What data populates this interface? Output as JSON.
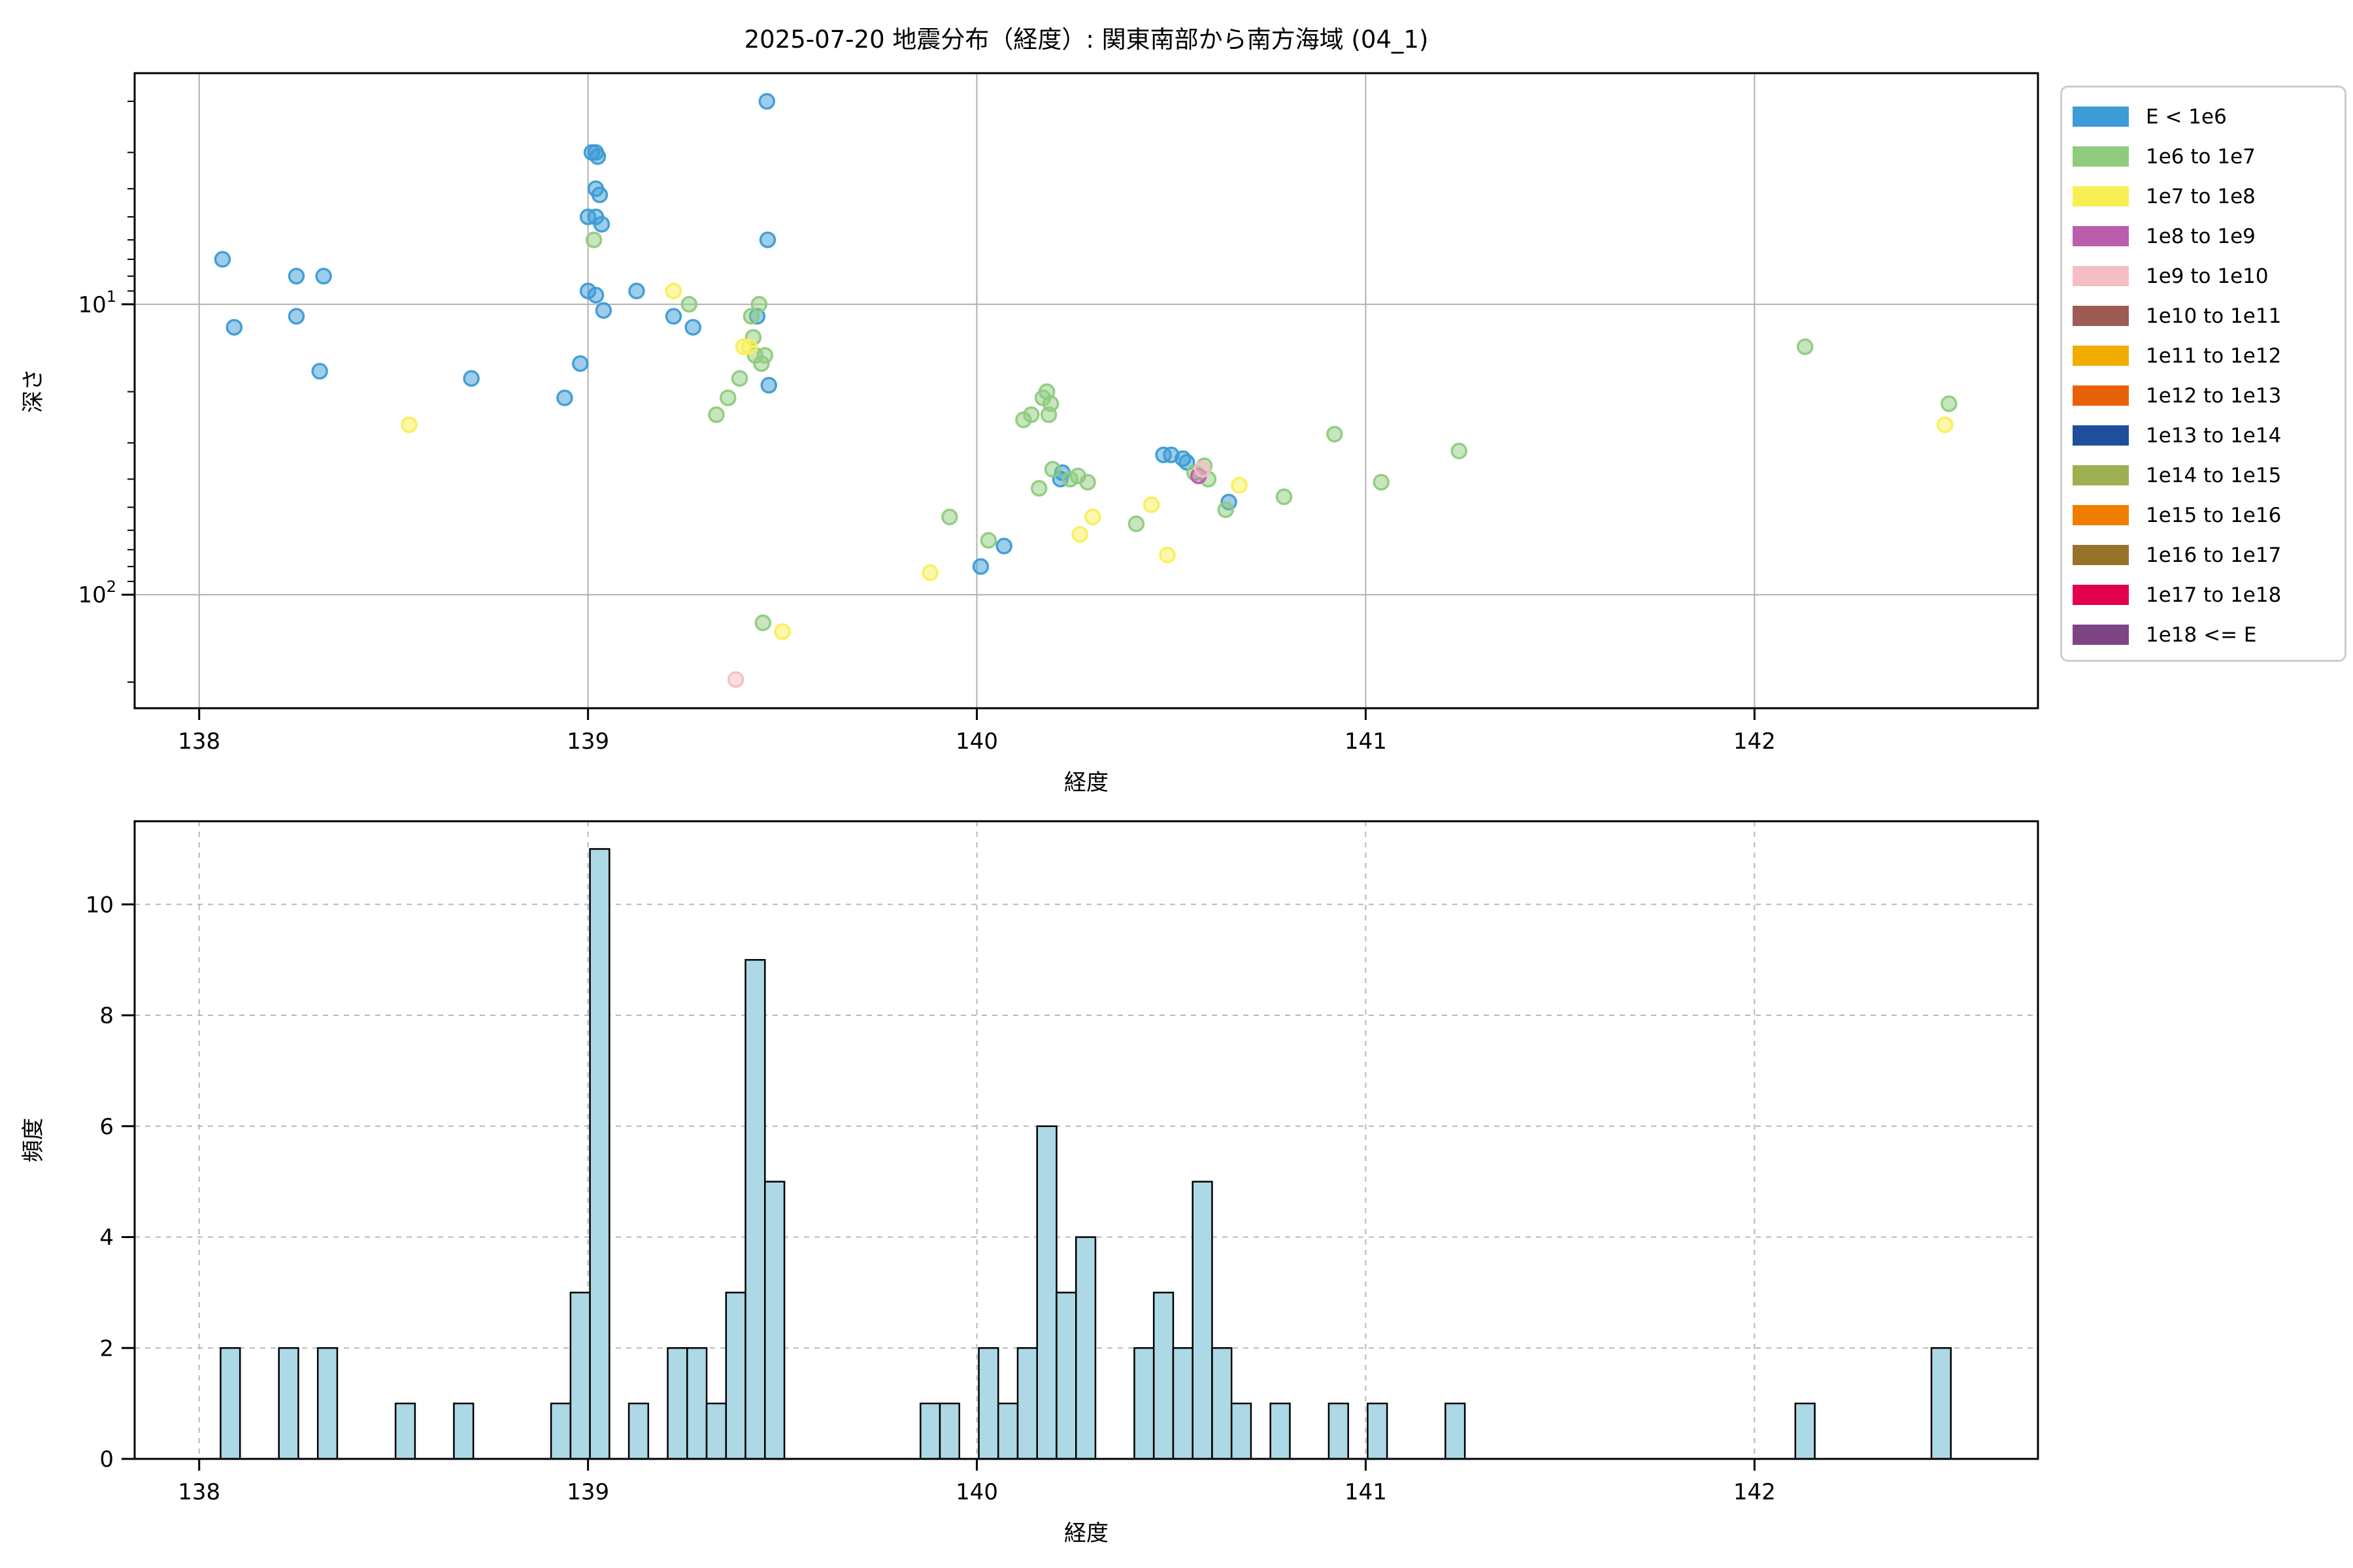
{
  "title": "2025-07-20 地震分布（経度）: 関東南部から南方海域 (04_1)",
  "legend": {
    "items": [
      {
        "label": "E < 1e6",
        "color": "#3d9bd5"
      },
      {
        "label": "1e6 to 1e7",
        "color": "#8fcb7d"
      },
      {
        "label": "1e7 to 1e8",
        "color": "#f9ef55"
      },
      {
        "label": "1e8 to 1e9",
        "color": "#bb5cad"
      },
      {
        "label": "1e9 to 1e10",
        "color": "#f5bec4"
      },
      {
        "label": "1e10 to 1e11",
        "color": "#9d5b53"
      },
      {
        "label": "1e11 to 1e12",
        "color": "#f0ad00"
      },
      {
        "label": "1e12 to 1e13",
        "color": "#e96106"
      },
      {
        "label": "1e13 to 1e14",
        "color": "#1f4e9c"
      },
      {
        "label": "1e14 to 1e15",
        "color": "#9caf51"
      },
      {
        "label": "1e15 to 1e16",
        "color": "#f07d00"
      },
      {
        "label": "1e16 to 1e17",
        "color": "#97732a"
      },
      {
        "label": "1e17 to 1e18",
        "color": "#e2004f"
      },
      {
        "label": "1e18 <= E",
        "color": "#7d4583"
      }
    ]
  },
  "chart_data": [
    {
      "type": "scatter",
      "title": "2025-07-20 地震分布（経度）: 関東南部から南方海域 (04_1)",
      "xlabel": "経度",
      "ylabel": "深さ",
      "xlim": [
        137.834,
        142.729
      ],
      "xticks": [
        138,
        139,
        140,
        141,
        142
      ],
      "y_scale": "log-inverted",
      "depth_lim": [
        1.6,
        246
      ],
      "ytick_labels": [
        {
          "base": "10",
          "exp": "1",
          "value": 10
        },
        {
          "base": "10",
          "exp": "2",
          "value": 100
        }
      ],
      "grid": true,
      "legend_position": "outside-upper-right",
      "series_key": [
        "longitude",
        "depth_km",
        "energy_class_index"
      ],
      "points": [
        [
          138.06,
          7,
          0
        ],
        [
          138.09,
          12,
          0
        ],
        [
          138.25,
          8,
          0
        ],
        [
          138.25,
          11,
          0
        ],
        [
          138.31,
          17,
          0
        ],
        [
          138.32,
          8,
          0
        ],
        [
          138.7,
          18,
          0
        ],
        [
          138.94,
          21,
          0
        ],
        [
          138.98,
          16,
          0
        ],
        [
          139.0,
          5,
          0
        ],
        [
          139.0,
          9,
          0
        ],
        [
          139.01,
          3,
          0
        ],
        [
          139.02,
          3,
          0
        ],
        [
          139.025,
          3.1,
          0
        ],
        [
          139.02,
          4,
          0
        ],
        [
          139.03,
          4.2,
          0
        ],
        [
          139.02,
          5,
          0
        ],
        [
          139.035,
          5.3,
          0
        ],
        [
          139.02,
          9.3,
          0
        ],
        [
          139.04,
          10.5,
          0
        ],
        [
          139.125,
          9,
          0
        ],
        [
          139.22,
          11,
          0
        ],
        [
          139.27,
          12,
          0
        ],
        [
          139.435,
          11,
          0
        ],
        [
          139.46,
          2,
          0
        ],
        [
          139.462,
          6,
          0
        ],
        [
          139.465,
          19,
          0
        ],
        [
          140.01,
          80,
          0
        ],
        [
          140.07,
          68,
          0
        ],
        [
          140.215,
          40,
          0
        ],
        [
          140.22,
          38,
          0
        ],
        [
          140.48,
          33,
          0
        ],
        [
          140.5,
          33,
          0
        ],
        [
          140.53,
          34,
          0
        ],
        [
          140.54,
          35,
          0
        ],
        [
          140.648,
          48,
          0
        ],
        [
          139.015,
          6,
          1
        ],
        [
          139.26,
          10,
          1
        ],
        [
          139.33,
          24,
          1
        ],
        [
          139.36,
          21,
          1
        ],
        [
          139.39,
          18,
          1
        ],
        [
          139.42,
          11,
          1
        ],
        [
          139.425,
          13,
          1
        ],
        [
          139.43,
          15,
          1
        ],
        [
          139.44,
          10,
          1
        ],
        [
          139.446,
          16,
          1
        ],
        [
          139.455,
          15,
          1
        ],
        [
          139.45,
          125,
          1
        ],
        [
          139.93,
          54,
          1
        ],
        [
          140.03,
          65,
          1
        ],
        [
          140.12,
          25,
          1
        ],
        [
          140.14,
          24,
          1
        ],
        [
          140.16,
          43,
          1
        ],
        [
          140.17,
          21,
          1
        ],
        [
          140.18,
          20,
          1
        ],
        [
          140.185,
          24,
          1
        ],
        [
          140.19,
          22,
          1
        ],
        [
          140.195,
          37,
          1
        ],
        [
          140.24,
          40,
          1
        ],
        [
          140.26,
          39,
          1
        ],
        [
          140.285,
          41,
          1
        ],
        [
          140.41,
          57,
          1
        ],
        [
          140.56,
          38,
          1
        ],
        [
          140.585,
          36,
          1
        ],
        [
          140.595,
          40,
          1
        ],
        [
          140.64,
          51,
          1
        ],
        [
          140.79,
          46,
          1
        ],
        [
          140.92,
          28,
          1
        ],
        [
          141.04,
          41,
          1
        ],
        [
          141.24,
          32,
          1
        ],
        [
          142.13,
          14,
          1
        ],
        [
          142.5,
          22,
          1
        ],
        [
          138.54,
          26,
          2
        ],
        [
          139.22,
          9,
          2
        ],
        [
          139.4,
          14,
          2
        ],
        [
          139.415,
          14,
          2
        ],
        [
          139.5,
          134,
          2
        ],
        [
          139.88,
          84,
          2
        ],
        [
          140.265,
          62,
          2
        ],
        [
          140.298,
          54,
          2
        ],
        [
          140.449,
          49,
          2
        ],
        [
          140.49,
          73,
          2
        ],
        [
          140.675,
          42,
          2
        ],
        [
          142.49,
          26,
          2
        ],
        [
          140.57,
          39,
          3
        ],
        [
          139.38,
          196,
          4
        ],
        [
          140.58,
          37,
          4
        ]
      ]
    },
    {
      "type": "bar",
      "xlabel": "経度",
      "ylabel": "頻度",
      "xlim": [
        137.834,
        142.729
      ],
      "xticks": [
        138,
        139,
        140,
        141,
        142
      ],
      "yticks": [
        0,
        2,
        4,
        6,
        8,
        10
      ],
      "ylim": [
        0,
        11.5
      ],
      "grid": "dashed",
      "bar_color": "#add8e6",
      "bar_edge_color": "#000000",
      "bin_width": 0.05,
      "bars_key": [
        "bin_start_longitude",
        "count"
      ],
      "bars": [
        [
          138.055,
          2
        ],
        [
          138.205,
          2
        ],
        [
          138.305,
          2
        ],
        [
          138.505,
          1
        ],
        [
          138.655,
          1
        ],
        [
          138.905,
          1
        ],
        [
          138.955,
          3
        ],
        [
          139.005,
          11
        ],
        [
          139.105,
          1
        ],
        [
          139.205,
          2
        ],
        [
          139.255,
          2
        ],
        [
          139.305,
          1
        ],
        [
          139.355,
          3
        ],
        [
          139.405,
          9
        ],
        [
          139.455,
          5
        ],
        [
          139.855,
          1
        ],
        [
          139.905,
          1
        ],
        [
          140.005,
          2
        ],
        [
          140.055,
          1
        ],
        [
          140.105,
          2
        ],
        [
          140.155,
          6
        ],
        [
          140.205,
          3
        ],
        [
          140.255,
          4
        ],
        [
          140.405,
          2
        ],
        [
          140.455,
          3
        ],
        [
          140.505,
          2
        ],
        [
          140.555,
          5
        ],
        [
          140.605,
          2
        ],
        [
          140.655,
          1
        ],
        [
          140.755,
          1
        ],
        [
          140.905,
          1
        ],
        [
          141.005,
          1
        ],
        [
          141.205,
          1
        ],
        [
          142.105,
          1
        ],
        [
          142.455,
          2
        ]
      ]
    }
  ]
}
